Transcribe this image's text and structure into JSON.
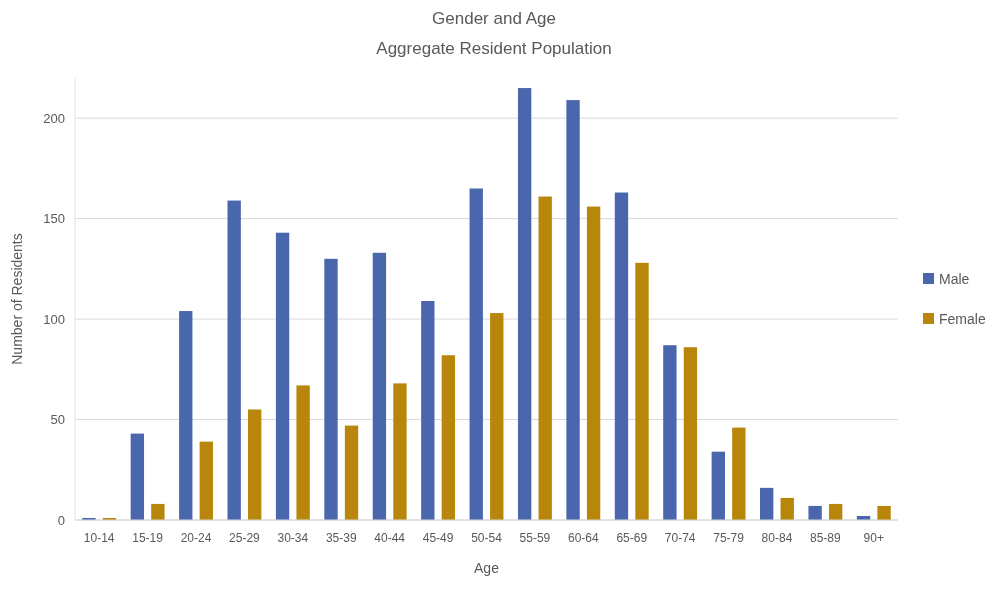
{
  "chart_data": {
    "type": "bar",
    "title": "Gender and Age",
    "subtitle": "Aggregate Resident Population",
    "xlabel": "Age",
    "ylabel": "Number of Residents",
    "categories": [
      "10-14",
      "15-19",
      "20-24",
      "25-29",
      "30-34",
      "35-39",
      "40-44",
      "45-49",
      "50-54",
      "55-59",
      "60-64",
      "65-69",
      "70-74",
      "75-79",
      "80-84",
      "85-89",
      "90+"
    ],
    "series": [
      {
        "name": "Male",
        "color": "#4a66ac",
        "values": [
          1,
          43,
          104,
          159,
          143,
          130,
          133,
          109,
          165,
          215,
          209,
          163,
          87,
          34,
          16,
          7,
          2
        ]
      },
      {
        "name": "Female",
        "color": "#b8860b",
        "values": [
          1,
          8,
          39,
          55,
          67,
          47,
          68,
          82,
          103,
          161,
          156,
          128,
          86,
          46,
          11,
          8,
          7
        ]
      }
    ],
    "ylim": [
      0,
      220
    ],
    "yticks": [
      0,
      50,
      100,
      150,
      200
    ],
    "grid": "y",
    "legend": "right"
  }
}
